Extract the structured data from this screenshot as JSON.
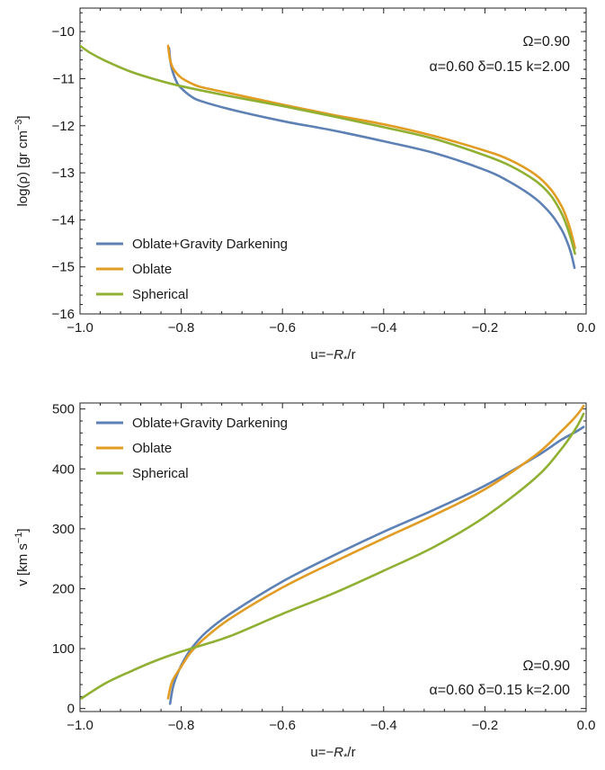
{
  "chart_data": [
    {
      "type": "line",
      "xlabel_parts": [
        "u=−",
        "R",
        "*",
        "/r"
      ],
      "ylabel_parts": [
        "log(ρ) [gr cm",
        "−3",
        "]"
      ],
      "xlim": [
        -1.0,
        0.0
      ],
      "ylim": [
        -16,
        -9.5
      ],
      "xticks": [
        -1.0,
        -0.8,
        -0.6,
        -0.4,
        -0.2,
        0.0
      ],
      "xtick_labels": [
        "−1.0",
        "−0.8",
        "−0.6",
        "−0.4",
        "−0.2",
        "0.0"
      ],
      "yticks": [
        -16,
        -15,
        -14,
        -13,
        -12,
        -11,
        -10
      ],
      "ytick_labels": [
        "−16",
        "−15",
        "−14",
        "−13",
        "−12",
        "−11",
        "−10"
      ],
      "annotation": {
        "line1": "Ω=0.90",
        "line2": "α=0.60 δ=0.15 k=2.00",
        "position": "top-right"
      },
      "legend": {
        "position": "bottom-left"
      },
      "series": [
        {
          "name": "Oblate+Gravity Darkening",
          "color": "#5e81b5",
          "x": [
            -0.824,
            -0.82,
            -0.81,
            -0.8,
            -0.78,
            -0.76,
            -0.7,
            -0.6,
            -0.5,
            -0.4,
            -0.3,
            -0.2,
            -0.15,
            -0.1,
            -0.07,
            -0.05,
            -0.04,
            -0.03,
            -0.023
          ],
          "y": [
            -10.35,
            -10.72,
            -11.05,
            -11.2,
            -11.38,
            -11.48,
            -11.66,
            -11.9,
            -12.1,
            -12.33,
            -12.58,
            -12.94,
            -13.2,
            -13.55,
            -13.87,
            -14.18,
            -14.4,
            -14.7,
            -15.02
          ]
        },
        {
          "name": "Oblate",
          "color": "#e19c24",
          "x": [
            -0.826,
            -0.822,
            -0.815,
            -0.8,
            -0.78,
            -0.76,
            -0.7,
            -0.6,
            -0.5,
            -0.4,
            -0.3,
            -0.2,
            -0.15,
            -0.1,
            -0.07,
            -0.05,
            -0.04,
            -0.03,
            -0.022
          ],
          "y": [
            -10.3,
            -10.6,
            -10.8,
            -10.98,
            -11.1,
            -11.18,
            -11.32,
            -11.55,
            -11.77,
            -11.97,
            -12.22,
            -12.53,
            -12.73,
            -13.04,
            -13.35,
            -13.68,
            -13.92,
            -14.25,
            -14.6
          ]
        },
        {
          "name": "Spherical",
          "color": "#8fb032",
          "x": [
            -1.0,
            -0.98,
            -0.95,
            -0.9,
            -0.85,
            -0.8,
            -0.7,
            -0.6,
            -0.5,
            -0.4,
            -0.3,
            -0.2,
            -0.15,
            -0.1,
            -0.07,
            -0.05,
            -0.04,
            -0.03,
            -0.022
          ],
          "y": [
            -10.3,
            -10.45,
            -10.62,
            -10.85,
            -11.02,
            -11.16,
            -11.38,
            -11.58,
            -11.8,
            -12.03,
            -12.28,
            -12.63,
            -12.85,
            -13.17,
            -13.48,
            -13.83,
            -14.08,
            -14.4,
            -14.72
          ]
        }
      ]
    },
    {
      "type": "line",
      "xlabel_parts": [
        "u=−",
        "R",
        "*",
        "/r"
      ],
      "ylabel_parts": [
        "v [km s",
        "−1",
        "]"
      ],
      "xlim": [
        -1.0,
        0.0
      ],
      "ylim": [
        -5,
        510
      ],
      "xticks": [
        -1.0,
        -0.8,
        -0.6,
        -0.4,
        -0.2,
        0.0
      ],
      "xtick_labels": [
        "−1.0",
        "−0.8",
        "−0.6",
        "−0.4",
        "−0.2",
        "0.0"
      ],
      "yticks": [
        0,
        100,
        200,
        300,
        400,
        500
      ],
      "ytick_labels": [
        "0",
        "100",
        "200",
        "300",
        "400",
        "500"
      ],
      "annotation": {
        "line1": "Ω=0.90",
        "line2": "α=0.60 δ=0.15 k=2.00",
        "position": "bottom-right"
      },
      "legend": {
        "position": "top-left"
      },
      "series": [
        {
          "name": "Oblate+Gravity Darkening",
          "color": "#5e81b5",
          "x": [
            -0.822,
            -0.815,
            -0.8,
            -0.78,
            -0.75,
            -0.7,
            -0.6,
            -0.5,
            -0.4,
            -0.3,
            -0.2,
            -0.1,
            -0.05,
            -0.02,
            -0.005
          ],
          "y": [
            8,
            40,
            72,
            100,
            128,
            160,
            212,
            255,
            295,
            332,
            372,
            420,
            448,
            462,
            470
          ]
        },
        {
          "name": "Oblate",
          "color": "#e19c24",
          "x": [
            -0.826,
            -0.818,
            -0.8,
            -0.78,
            -0.75,
            -0.7,
            -0.6,
            -0.5,
            -0.4,
            -0.3,
            -0.2,
            -0.1,
            -0.05,
            -0.02,
            -0.005
          ],
          "y": [
            17,
            45,
            70,
            95,
            120,
            152,
            202,
            244,
            284,
            323,
            366,
            423,
            462,
            488,
            505
          ]
        },
        {
          "name": "Spherical",
          "color": "#8fb032",
          "x": [
            -0.997,
            -0.95,
            -0.9,
            -0.85,
            -0.8,
            -0.75,
            -0.7,
            -0.6,
            -0.5,
            -0.4,
            -0.3,
            -0.2,
            -0.1,
            -0.05,
            -0.02,
            -0.005
          ],
          "y": [
            17,
            42,
            62,
            80,
            95,
            108,
            122,
            158,
            192,
            230,
            270,
            320,
            385,
            432,
            468,
            492
          ]
        }
      ]
    }
  ]
}
